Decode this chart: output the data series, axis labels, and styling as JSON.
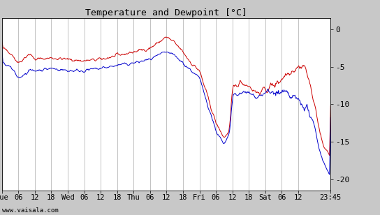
{
  "title": "Temperature and Dewpoint [°C]",
  "yticks": [
    0,
    -5,
    -10,
    -15,
    -20
  ],
  "ylim": [
    -21.5,
    1.5
  ],
  "bg_color": "#c8c8c8",
  "plot_bg_color": "#ffffff",
  "grid_color": "#aaaaaa",
  "temp_color": "#cc0000",
  "dewp_color": "#0000cc",
  "bottom_text": "www.vaisala.com",
  "n_points": 600,
  "seed": 42,
  "tick_positions": [
    0,
    30,
    60,
    90,
    120,
    150,
    180,
    210,
    240,
    270,
    300,
    330,
    360,
    390,
    420,
    450,
    480,
    510,
    540,
    599
  ],
  "tick_labels": [
    "Tue",
    "06",
    "12",
    "18",
    "Wed",
    "06",
    "12",
    "18",
    "Thu",
    "06",
    "12",
    "18",
    "Fri",
    "06",
    "12",
    "18",
    "Sat",
    "06",
    "12",
    "23:45"
  ]
}
